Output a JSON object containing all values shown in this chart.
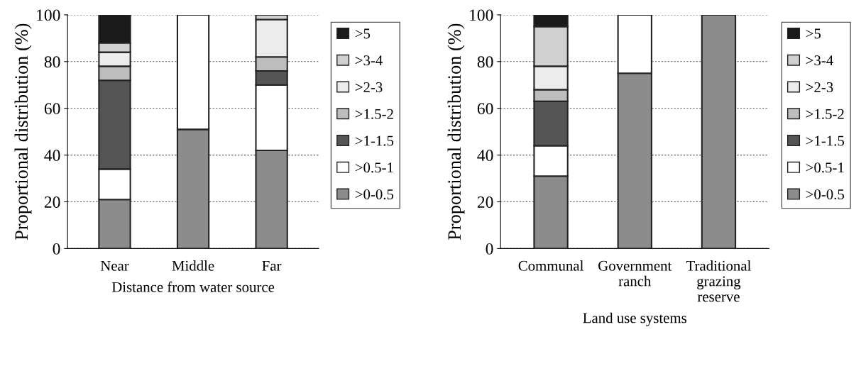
{
  "chart_data": [
    {
      "type": "bar",
      "stacked": true,
      "categories": [
        "Near",
        "Middle",
        "Far"
      ],
      "xlabel": "Distance from water source",
      "ylabel": "Proportional distribution (%)",
      "ylim": [
        0,
        100
      ],
      "yticks": [
        0,
        20,
        40,
        60,
        80,
        100
      ],
      "grid": "y",
      "legend": "right",
      "series": [
        {
          "name": ">0-0.5",
          "color": "#8c8c8c",
          "values": [
            21,
            51,
            42
          ]
        },
        {
          "name": ">0.5-1",
          "color": "#ffffff",
          "values": [
            13,
            49,
            28
          ]
        },
        {
          "name": ">1-1.5",
          "color": "#555555",
          "values": [
            38,
            0,
            6
          ]
        },
        {
          "name": ">1.5-2",
          "color": "#bdbdbd",
          "values": [
            6,
            0,
            6
          ]
        },
        {
          "name": ">2-3",
          "color": "#ececec",
          "values": [
            6,
            0,
            16
          ]
        },
        {
          "name": ">3-4",
          "color": "#d0d0d0",
          "values": [
            4,
            0,
            2
          ]
        },
        {
          "name": ">5",
          "color": "#1a1a1a",
          "values": [
            12,
            0,
            0
          ]
        }
      ]
    },
    {
      "type": "bar",
      "stacked": true,
      "categories": [
        "Communal",
        "Government\nranch",
        "Traditional\ngrazing\nreserve"
      ],
      "xlabel": "Land use systems",
      "ylabel": "Proportional distribution (%)",
      "ylim": [
        0,
        100
      ],
      "yticks": [
        0,
        20,
        40,
        60,
        80,
        100
      ],
      "grid": "y",
      "legend": "right",
      "series": [
        {
          "name": ">0-0.5",
          "color": "#8c8c8c",
          "values": [
            31,
            75,
            100
          ]
        },
        {
          "name": ">0.5-1",
          "color": "#ffffff",
          "values": [
            13,
            25,
            0
          ]
        },
        {
          "name": ">1-1.5",
          "color": "#555555",
          "values": [
            19,
            0,
            0
          ]
        },
        {
          "name": ">1.5-2",
          "color": "#bdbdbd",
          "values": [
            5,
            0,
            0
          ]
        },
        {
          "name": ">2-3",
          "color": "#ececec",
          "values": [
            10,
            0,
            0
          ]
        },
        {
          "name": ">3-4",
          "color": "#d0d0d0",
          "values": [
            17,
            0,
            0
          ]
        },
        {
          "name": ">5",
          "color": "#1a1a1a",
          "values": [
            5,
            0,
            0
          ]
        }
      ]
    }
  ]
}
